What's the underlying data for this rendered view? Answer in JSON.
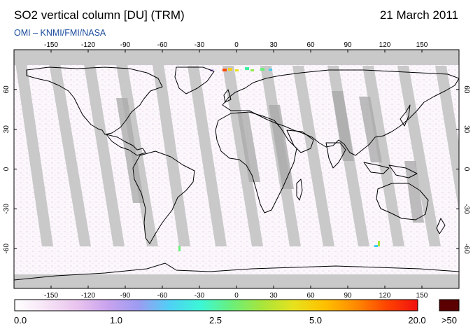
{
  "header": {
    "title": "SO2 vertical column [DU] (TRM)",
    "date": "21 March 2011",
    "source": "OMI  –  KNMI/FMI/NASA"
  },
  "map": {
    "lon_ticks": [
      "-150",
      "-120",
      "-90",
      "-60",
      "-30",
      "0",
      "30",
      "60",
      "90",
      "120",
      "150"
    ],
    "lat_ticks": [
      "60",
      "30",
      "0",
      "-30",
      "-60"
    ],
    "lon_range": [
      -180,
      180
    ],
    "lat_range": [
      -90,
      90
    ],
    "colors": {
      "land_border": "#000000",
      "orbit_gap": "#c8c8c8",
      "polar_mask": "#c9c9c9"
    }
  },
  "colorbar": {
    "labels": [
      "0.0",
      "1.0",
      "2.5",
      "5.0",
      "20.0",
      ">50"
    ],
    "gradient": [
      "#ffffff",
      "#f6e4f6",
      "#e9c4ee",
      "#c9a3ee",
      "#9c9cf2",
      "#4fd0f5",
      "#3cf7d6",
      "#6bef7a",
      "#a9e53a",
      "#e7e21e",
      "#ffc000",
      "#ff8a00",
      "#ff4400",
      "#f01010"
    ],
    "overflow_color": "#5a0000"
  }
}
